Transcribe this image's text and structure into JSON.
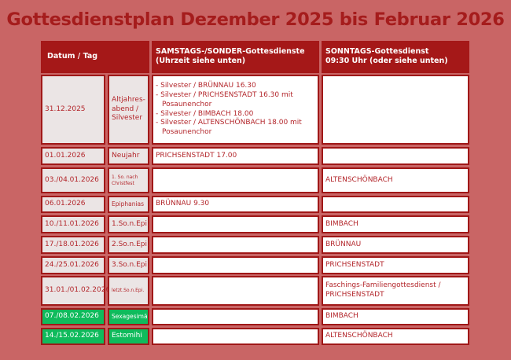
{
  "title": "Gottesdienstplan Dezember 2025 bis Februar 2026",
  "headers": {
    "date": "Datum / Tag",
    "saturday": "SAMSTAGS-/SONDER-Gottesdienste",
    "saturday_note": "(Uhrzeit siehe unten)",
    "sunday": "SONNTAGS-Gottesdienst",
    "sunday_note": "09:30 Uhr (oder siehe unten)"
  },
  "rows": [
    {
      "date": "31.12.2025",
      "day": "Altjahres-abend / Silvester",
      "saturday": [
        "- Silvester / BRÜNNAU 16.30",
        "- Silvester / PRICHSENSTADT 16.30 mit Posaunenchor",
        "- Silvester / BIMBACH 18.00",
        "- Silvester / ALTENSCHÖNBACH 18.00 mit Posaunenchor"
      ],
      "sunday": ""
    },
    {
      "date": "01.01.2026",
      "day": "Neujahr",
      "saturday": "PRICHSENSTADT 17.00",
      "sunday": ""
    },
    {
      "date": "03./04.01.2026",
      "day": "1. So. nach Christfest",
      "saturday": "",
      "sunday": "ALTENSCHÖNBACH"
    },
    {
      "date": "06.01.2026",
      "day": "Epiphanias",
      "saturday": "BRÜNNAU 9.30",
      "sunday": ""
    },
    {
      "date": "10./11.01.2026",
      "day": "1.So.n.Epi.",
      "saturday": "",
      "sunday": "BIMBACH"
    },
    {
      "date": "17./18.01.2026",
      "day": "2.So.n.Epi.",
      "saturday": "",
      "sunday": "BRÜNNAU"
    },
    {
      "date": "24./25.01.2026",
      "day": "3.So.n.Epi.",
      "saturday": "",
      "sunday": "PRICHSENSTADT"
    },
    {
      "date": "31.01./01.02.2026",
      "day": "letzt.So.n.Epi.",
      "saturday": "",
      "sunday": "Faschings-Familiengottesdienst / PRICHSENSTADT"
    },
    {
      "date": "07./08.02.2026",
      "day": "Sexagesimä",
      "saturday": "",
      "sunday": "BIMBACH",
      "highlight": "#0fbb5c"
    },
    {
      "date": "14./15.02.2026",
      "day": "Estomihi",
      "saturday": "",
      "sunday": "ALTENSCHÖNBACH",
      "highlight": "#0fbb5c"
    }
  ],
  "colors": {
    "background": "#c96565",
    "header": "#a51818",
    "title": "#a51c1c"
  }
}
